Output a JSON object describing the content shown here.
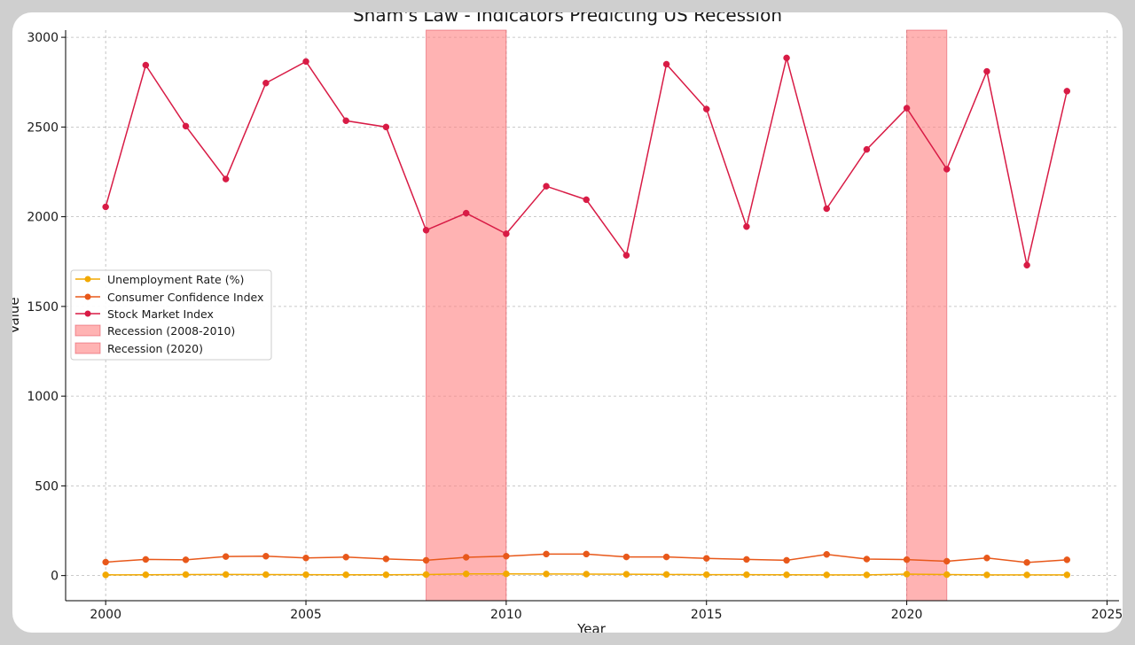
{
  "chart_data": {
    "type": "line",
    "title": "Sham's Law - Indicators Predicting US Recession",
    "xlabel": "Year",
    "ylabel": "Value",
    "xlim": [
      1999,
      2025.3
    ],
    "ylim": [
      -140,
      3040
    ],
    "xticks": [
      2000,
      2005,
      2010,
      2015,
      2020,
      2025
    ],
    "yticks": [
      0,
      500,
      1000,
      1500,
      2000,
      2500,
      3000
    ],
    "grid": true,
    "legend_position": "center-left",
    "x": [
      2000,
      2001,
      2002,
      2003,
      2004,
      2005,
      2006,
      2007,
      2008,
      2009,
      2010,
      2011,
      2012,
      2013,
      2014,
      2015,
      2016,
      2017,
      2018,
      2019,
      2020,
      2021,
      2022,
      2023,
      2024
    ],
    "series": [
      {
        "name": "Unemployment Rate (%)",
        "color": "#f2a900",
        "values": [
          4.0,
          4.7,
          5.8,
          6.0,
          5.5,
          5.1,
          4.6,
          4.6,
          5.8,
          9.3,
          9.6,
          8.9,
          8.1,
          7.4,
          6.2,
          5.3,
          4.9,
          4.4,
          3.9,
          3.7,
          8.1,
          5.4,
          3.6,
          3.6,
          4.0
        ]
      },
      {
        "name": "Consumer Confidence Index",
        "color": "#e8581a",
        "values": [
          75,
          90,
          88,
          106,
          108,
          98,
          103,
          93,
          85,
          102,
          108,
          120,
          120,
          104,
          104,
          96,
          90,
          85,
          118,
          92,
          89,
          80,
          98,
          73,
          88
        ]
      },
      {
        "name": "Stock Market Index",
        "color": "#d81b45",
        "values": [
          2055,
          2845,
          2505,
          2210,
          2745,
          2865,
          2535,
          2500,
          1925,
          2020,
          1905,
          2170,
          2095,
          1785,
          2850,
          2600,
          1945,
          2885,
          2045,
          2375,
          2605,
          2265,
          2810,
          1730,
          2700
        ]
      }
    ],
    "recessions": [
      {
        "name": "Recession (2008-2010)",
        "start": 2008,
        "end": 2010,
        "color": "#ff8080"
      },
      {
        "name": "Recession (2020)",
        "start": 2020,
        "end": 2021,
        "color": "#ff8080"
      }
    ]
  }
}
